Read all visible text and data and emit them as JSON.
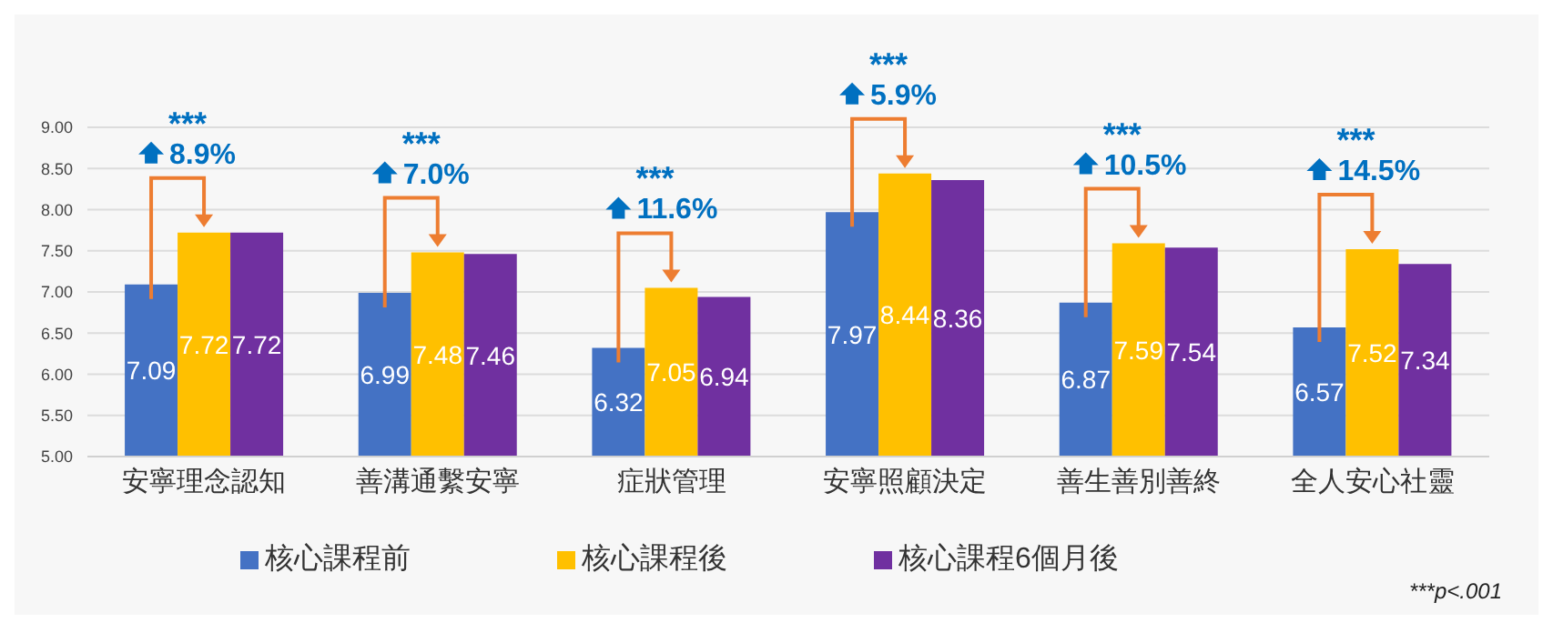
{
  "chart_data": {
    "type": "bar",
    "categories": [
      "安寧理念認知",
      "善溝通繫安寧",
      "症狀管理",
      "安寧照顧決定",
      "善生善別善終",
      "全人安心社靈"
    ],
    "series": [
      {
        "name": "核心課程前",
        "color": "#4472c4",
        "values": [
          7.09,
          6.99,
          6.32,
          7.97,
          6.87,
          6.57
        ]
      },
      {
        "name": "核心課程後",
        "color": "#ffc000",
        "values": [
          7.72,
          7.48,
          7.05,
          8.44,
          7.59,
          7.52
        ]
      },
      {
        "name": "核心課程6個月後",
        "color": "#7030a0",
        "values": [
          7.72,
          7.46,
          6.94,
          8.36,
          7.54,
          7.34
        ]
      }
    ],
    "ylim": [
      5,
      9
    ],
    "yticks": [
      {
        "value": 5,
        "label": "5.00"
      },
      {
        "value": 5.5,
        "label": "5.50"
      },
      {
        "value": 6,
        "label": "6.00"
      },
      {
        "value": 6.5,
        "label": "6.50"
      },
      {
        "value": 7,
        "label": "7.00"
      },
      {
        "value": 7.5,
        "label": "7.50"
      },
      {
        "value": 8,
        "label": "8.00"
      },
      {
        "value": 8.5,
        "label": "8.50"
      },
      {
        "value": 9,
        "label": "9.00"
      }
    ],
    "grid": "y",
    "legend": "bottom",
    "data_labels": true,
    "annotations": [
      "***",
      "8.9%",
      "***",
      "7.0%",
      "***",
      "11.6%",
      "***",
      "5.9%",
      "***",
      "10.5%",
      "***",
      "14.5%",
      "***p<.001"
    ]
  }
}
